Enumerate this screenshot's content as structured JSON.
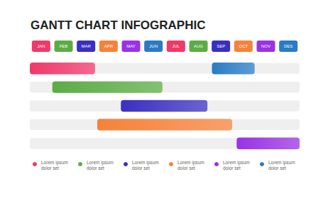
{
  "chart_data": {
    "type": "gantt",
    "title": "GANTT CHART INFOGRAPHIC",
    "categories": [
      "JAN",
      "FEB",
      "MAR",
      "APR",
      "MAY",
      "JUN",
      "JUL",
      "AUG",
      "SEP",
      "OCT",
      "NOV",
      "DES"
    ],
    "xlim": [
      0,
      12
    ],
    "tasks": [
      {
        "name": "Lorem ipsum dolor set",
        "color": "#f0386b",
        "row": 0,
        "start": 0,
        "end": 2.9
      },
      {
        "name": "Lorem ipsum dolor set",
        "color": "#5cac45",
        "row": 1,
        "start": 1,
        "end": 5.9
      },
      {
        "name": "Lorem ipsum dolor set",
        "color": "#3b2fc0",
        "row": 2,
        "start": 4.05,
        "end": 7.9
      },
      {
        "name": "Lorem ipsum dolor set",
        "color": "#f5823a",
        "row": 3,
        "start": 3,
        "end": 9
      },
      {
        "name": "Lorem ipsum dolor set",
        "color": "#9a32e6",
        "row": 4,
        "start": 9.2,
        "end": 12
      },
      {
        "name": "Lorem ipsum dolor set",
        "color": "#2a7bc4",
        "row": 0,
        "start": 8.1,
        "end": 10
      }
    ]
  }
}
